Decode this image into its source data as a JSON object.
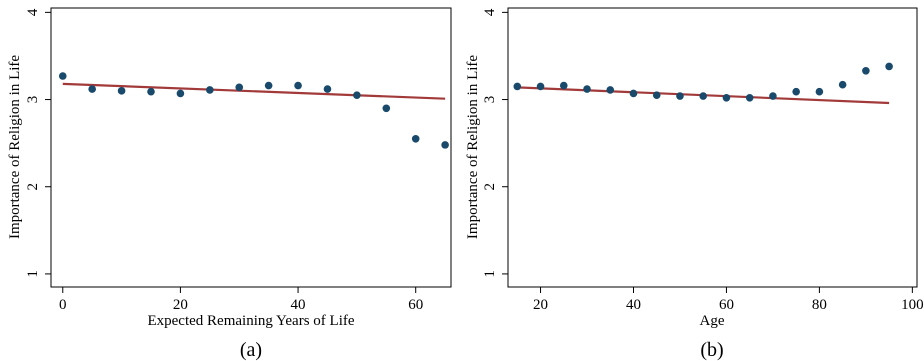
{
  "chart_data": [
    {
      "type": "scatter",
      "panel_label": "(a)",
      "xlabel": "Expected Remaining Years of Life",
      "ylabel": "Importance of Religion in Life",
      "xlim": [
        -2,
        66
      ],
      "ylim": [
        0.85,
        4.05
      ],
      "xticks": [
        0,
        20,
        40,
        60
      ],
      "yticks": [
        1,
        2,
        3,
        4
      ],
      "grid": false,
      "points": [
        {
          "x": 0,
          "y": 3.27
        },
        {
          "x": 5,
          "y": 3.12
        },
        {
          "x": 10,
          "y": 3.1
        },
        {
          "x": 15,
          "y": 3.09
        },
        {
          "x": 20,
          "y": 3.07
        },
        {
          "x": 25,
          "y": 3.11
        },
        {
          "x": 30,
          "y": 3.14
        },
        {
          "x": 35,
          "y": 3.16
        },
        {
          "x": 40,
          "y": 3.16
        },
        {
          "x": 45,
          "y": 3.12
        },
        {
          "x": 50,
          "y": 3.05
        },
        {
          "x": 55,
          "y": 2.9
        },
        {
          "x": 60,
          "y": 2.55
        },
        {
          "x": 65,
          "y": 2.48
        }
      ],
      "fit_line": {
        "x": [
          0,
          65
        ],
        "y": [
          3.18,
          3.01
        ]
      },
      "colors": {
        "points": "#1a4a6b",
        "fit_line": "#a33a3a"
      }
    },
    {
      "type": "scatter",
      "panel_label": "(b)",
      "xlabel": "Age",
      "ylabel": "Importance of Religion in Life",
      "xlim": [
        13,
        101
      ],
      "ylim": [
        0.85,
        4.05
      ],
      "xticks": [
        20,
        40,
        60,
        80,
        100
      ],
      "yticks": [
        1,
        2,
        3,
        4
      ],
      "grid": false,
      "points": [
        {
          "x": 15,
          "y": 3.15
        },
        {
          "x": 20,
          "y": 3.15
        },
        {
          "x": 25,
          "y": 3.16
        },
        {
          "x": 30,
          "y": 3.12
        },
        {
          "x": 35,
          "y": 3.11
        },
        {
          "x": 40,
          "y": 3.07
        },
        {
          "x": 45,
          "y": 3.05
        },
        {
          "x": 50,
          "y": 3.04
        },
        {
          "x": 55,
          "y": 3.04
        },
        {
          "x": 60,
          "y": 3.02
        },
        {
          "x": 65,
          "y": 3.02
        },
        {
          "x": 70,
          "y": 3.04
        },
        {
          "x": 75,
          "y": 3.09
        },
        {
          "x": 80,
          "y": 3.09
        },
        {
          "x": 85,
          "y": 3.17
        },
        {
          "x": 90,
          "y": 3.33
        },
        {
          "x": 95,
          "y": 3.38
        }
      ],
      "fit_line": {
        "x": [
          15,
          95
        ],
        "y": [
          3.14,
          2.96
        ]
      },
      "colors": {
        "points": "#1a4a6b",
        "fit_line": "#a33a3a"
      }
    }
  ]
}
